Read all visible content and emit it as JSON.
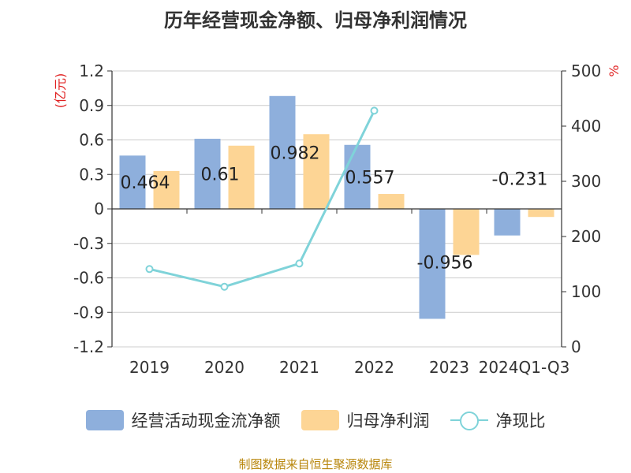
{
  "chart_data": {
    "type": "bar",
    "title": "历年经营现金净额、归母净利润情况",
    "categories": [
      "2019",
      "2020",
      "2021",
      "2022",
      "2023",
      "2024Q1-Q3"
    ],
    "series": [
      {
        "name": "经营活动现金流净额",
        "axis": "left",
        "color": "#8eafdc",
        "values": [
          0.464,
          0.61,
          0.982,
          0.557,
          -0.956,
          -0.231
        ]
      },
      {
        "name": "归母净利润",
        "axis": "left",
        "color": "#fdd595",
        "values": [
          0.33,
          0.55,
          0.65,
          0.13,
          -0.4,
          -0.07
        ]
      },
      {
        "name": "净现比",
        "axis": "right",
        "type": "line",
        "color": "#7fd3d9",
        "values": [
          141,
          109,
          151,
          428,
          null,
          null
        ]
      }
    ],
    "data_labels": [
      "0.464",
      "0.61",
      "0.982",
      "0.557",
      "-0.956",
      "-0.231"
    ],
    "y_left": {
      "label": "(亿元)",
      "min": -1.2,
      "max": 1.2,
      "ticks": [
        "1.2",
        "0.9",
        "0.6",
        "0.3",
        "0",
        "-0.3",
        "-0.6",
        "-0.9",
        "-1.2"
      ]
    },
    "y_right": {
      "label": "%",
      "min": 0,
      "max": 500,
      "ticks": [
        "500",
        "400",
        "300",
        "200",
        "100",
        "0"
      ]
    },
    "grid": true,
    "legend": "bottom"
  },
  "source": "制图数据来自恒生聚源数据库"
}
